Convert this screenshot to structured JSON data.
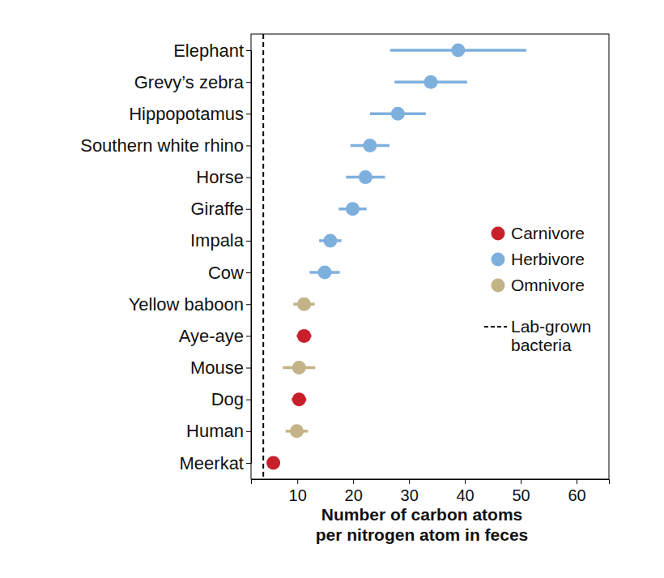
{
  "chart_data": {
    "type": "dot",
    "orientation": "horizontal",
    "x_label": [
      "Number of carbon atoms",
      "per nitrogen atom in feces"
    ],
    "categories": [
      "Elephant",
      "Grevy’s zebra",
      "Hippopotamus",
      "Southern white rhino",
      "Horse",
      "Giraffe",
      "Impala",
      "Cow",
      "Yellow baboon",
      "Aye-aye",
      "Mouse",
      "Dog",
      "Human",
      "Meerkat"
    ],
    "series": [
      {
        "name": "Carnivore",
        "color": "#c8202a",
        "values": [
          null,
          null,
          null,
          null,
          null,
          null,
          null,
          null,
          null,
          11.2,
          null,
          10.3,
          null,
          5.7
        ],
        "errors": [
          null,
          null,
          null,
          null,
          null,
          null,
          null,
          null,
          null,
          1.3,
          null,
          1.3,
          null,
          0.5
        ]
      },
      {
        "name": "Herbivore",
        "color": "#7eb0de",
        "values": [
          38.8,
          33.9,
          28.0,
          23.0,
          22.2,
          19.9,
          15.9,
          14.9,
          null,
          null,
          null,
          null,
          null,
          null
        ],
        "errors": [
          12.2,
          6.5,
          5.0,
          3.5,
          3.5,
          2.5,
          2.0,
          2.7,
          null,
          null,
          null,
          null,
          null,
          null
        ]
      },
      {
        "name": "Omnivore",
        "color": "#c3b387",
        "values": [
          null,
          null,
          null,
          null,
          null,
          null,
          null,
          null,
          11.2,
          null,
          10.3,
          null,
          9.9,
          null
        ],
        "errors": [
          null,
          null,
          null,
          null,
          null,
          null,
          null,
          null,
          1.9,
          null,
          2.9,
          null,
          2.0,
          null
        ]
      }
    ],
    "reference_line": {
      "value": 3.9,
      "label": [
        "Lab-grown",
        "bacteria"
      ],
      "line_style": "dashed"
    },
    "xlim": [
      1.7,
      65.8
    ],
    "xticks": [
      10,
      20,
      30,
      40,
      50,
      60
    ],
    "legend": "right",
    "grid": false
  }
}
